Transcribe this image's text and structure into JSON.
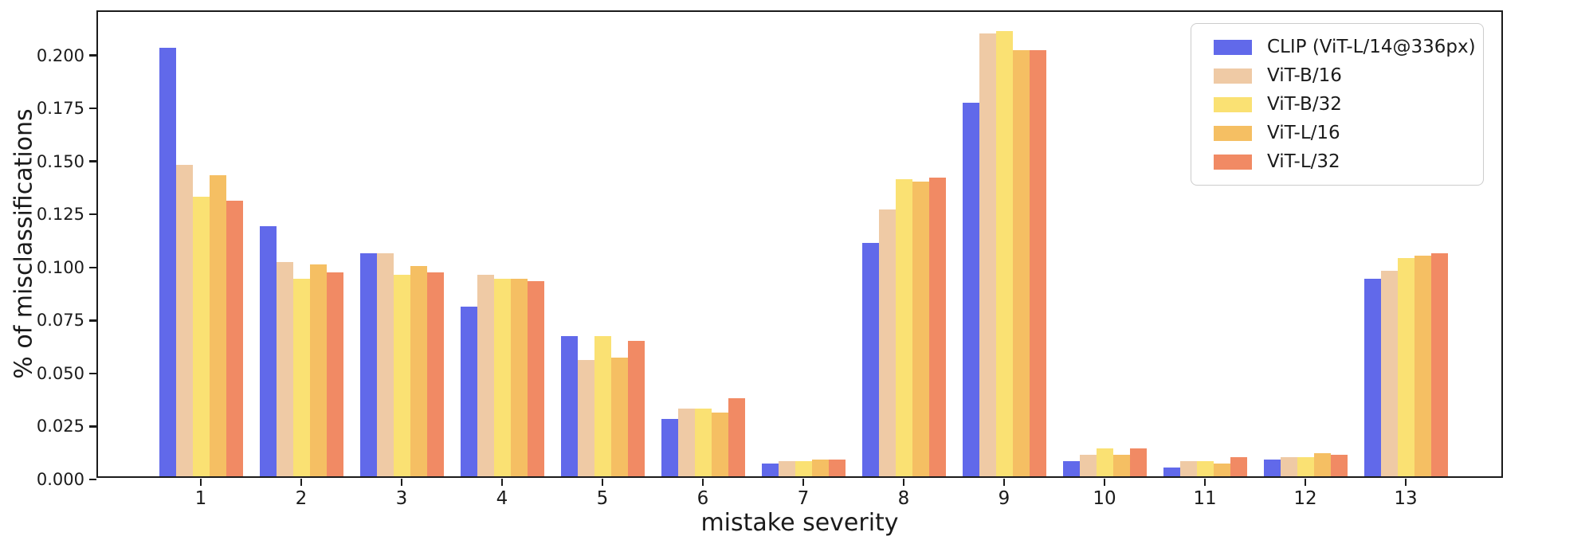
{
  "figure": {
    "xlabel": "mistake severity",
    "ylabel": "% of misclassifications"
  },
  "chart_data": {
    "type": "bar",
    "title": "",
    "xlabel": "mistake severity",
    "ylabel": "% of misclassifications",
    "categories": [
      "1",
      "2",
      "3",
      "4",
      "5",
      "6",
      "7",
      "8",
      "9",
      "10",
      "11",
      "12",
      "13"
    ],
    "series": [
      {
        "name": "CLIP (ViT-L/14@336px)",
        "color": "#6169ea",
        "values": [
          0.202,
          0.118,
          0.105,
          0.08,
          0.066,
          0.027,
          0.006,
          0.11,
          0.176,
          0.007,
          0.004,
          0.008,
          0.093
        ]
      },
      {
        "name": "ViT-B/16",
        "color": "#efcaa5",
        "values": [
          0.147,
          0.101,
          0.105,
          0.095,
          0.055,
          0.032,
          0.007,
          0.126,
          0.209,
          0.01,
          0.007,
          0.009,
          0.097
        ]
      },
      {
        "name": "ViT-B/32",
        "color": "#fae173",
        "values": [
          0.132,
          0.093,
          0.095,
          0.093,
          0.066,
          0.032,
          0.007,
          0.14,
          0.21,
          0.013,
          0.007,
          0.009,
          0.103
        ]
      },
      {
        "name": "ViT-L/16",
        "color": "#f5bf63",
        "values": [
          0.142,
          0.1,
          0.099,
          0.093,
          0.056,
          0.03,
          0.008,
          0.139,
          0.201,
          0.01,
          0.006,
          0.011,
          0.104
        ]
      },
      {
        "name": "ViT-L/32",
        "color": "#f18a64",
        "values": [
          0.13,
          0.096,
          0.096,
          0.092,
          0.064,
          0.037,
          0.008,
          0.141,
          0.201,
          0.013,
          0.009,
          0.01,
          0.105
        ]
      }
    ],
    "ylim": [
      0,
      0.2205
    ],
    "yticks": [
      0.0,
      0.025,
      0.05,
      0.075,
      0.1,
      0.125,
      0.15,
      0.175,
      0.2
    ],
    "ytick_labels": [
      "0.000",
      "0.025",
      "0.050",
      "0.075",
      "0.100",
      "0.125",
      "0.150",
      "0.175",
      "0.200"
    ],
    "legend_position": "upper right",
    "grid": false,
    "axis_color": "#1b1b1b"
  }
}
